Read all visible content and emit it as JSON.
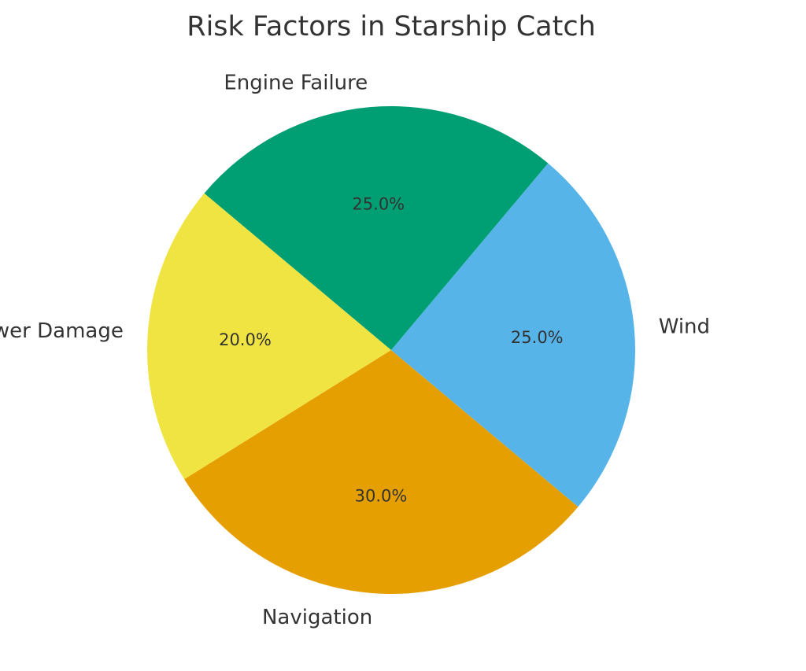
{
  "chart_data": {
    "type": "pie",
    "title": "Risk Factors in Starship Catch",
    "start_angle_deg": 140,
    "direction": "counterclockwise",
    "slices": [
      {
        "label": "Tower Damage",
        "value": 20.0,
        "pct_label": "20.0%",
        "color": "#F0E442"
      },
      {
        "label": "Navigation",
        "value": 30.0,
        "pct_label": "30.0%",
        "color": "#E69F00"
      },
      {
        "label": "Wind",
        "value": 25.0,
        "pct_label": "25.0%",
        "color": "#56B4E9"
      },
      {
        "label": "Engine Failure",
        "value": 25.0,
        "pct_label": "25.0%",
        "color": "#009E73"
      }
    ]
  }
}
